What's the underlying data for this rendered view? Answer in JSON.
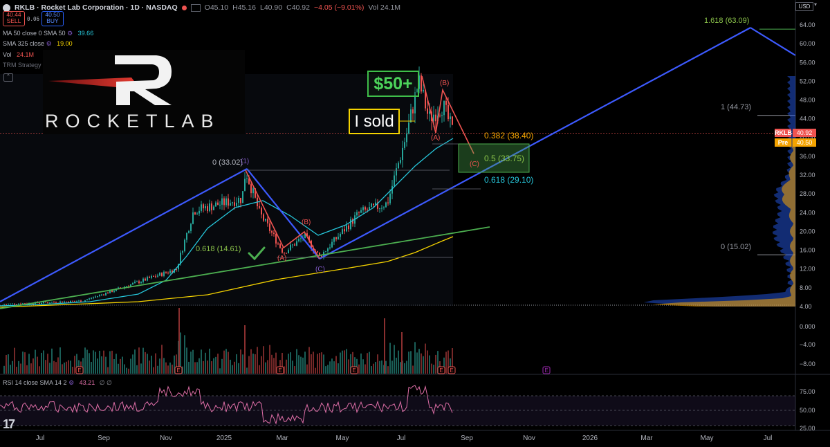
{
  "header": {
    "symbol_line": "RKLB · Rocket Lab Corporation · 1D · NASDAQ",
    "ohlc_open": "O45.10",
    "ohlc_high": "H45.16",
    "ohlc_low": "L40.90",
    "ohlc_close": "C40.92",
    "ohlc_change": "−4.05 (−9.01%)",
    "volume": "Vol 24.1M",
    "sell_price": "40.44",
    "sell_label": "SELL",
    "spread": "0.06",
    "buy_price": "40.50",
    "buy_label": "BUY"
  },
  "indicators": {
    "ma50_label": "MA 50 close 0 SMA 50",
    "ma50_value": "39.66",
    "sma325_label": "SMA 325 close",
    "sma325_value": "19.00",
    "vol_label": "Vol",
    "vol_value": "24.1M",
    "trm_label": "TRM Strategy 0 25 5 14 5 50 50 1 1 1,970",
    "rsi_label": "RSI 14 close SMA 14 2",
    "rsi_value": "43.21"
  },
  "currency": "USD",
  "logo": {
    "text": "ROCKETLAB",
    "mark": "R"
  },
  "annotations": {
    "sold": "I sold",
    "target": "$50+",
    "fib_0_top": "0 (33.02)",
    "fib_0618_low": "0.618 (14.61)",
    "fib_1618": "1.618 (63.09)",
    "fib_1": "1 (44.73)",
    "fib_0382": "0.382 (38.40)",
    "fib_05": "0.5 (33.75)",
    "fib_0618": "0.618 (29.10)",
    "fib_0": "0 (15.02)",
    "wave_A1": "(A)",
    "wave_B1": "(B)",
    "wave_C1": "(C)",
    "wave_A2": "(A)",
    "wave_B2": "(B)",
    "wave_C2": "(C)",
    "wave_1": "(1)"
  },
  "price_axis": [
    "64.00",
    "60.00",
    "56.00",
    "52.00",
    "48.00",
    "44.00",
    "40.00",
    "36.00",
    "32.00",
    "28.00",
    "24.00",
    "20.00",
    "16.00",
    "12.00",
    "8.00",
    "4.00"
  ],
  "price_tags": {
    "last_symbol": "RKLB",
    "last_price": "40.92",
    "pre_label": "Pre",
    "pre_price": "40.50"
  },
  "volume_axis": [
    "0.000",
    "−4.00",
    "−8.00"
  ],
  "rsi_axis": [
    "75.00",
    "50.00",
    "25.00"
  ],
  "time_axis": [
    "Jul",
    "Sep",
    "Nov",
    "2025",
    "Mar",
    "May",
    "Jul",
    "Sep",
    "Nov",
    "2026",
    "Mar",
    "May",
    "Jul"
  ],
  "event_markers": [
    "E",
    "E",
    "E",
    "E",
    "E",
    "E",
    "E"
  ],
  "colors": {
    "background": "#000000",
    "up": "#26a69a",
    "down": "#ef5350",
    "trend_blue": "#3d5afe",
    "fib_orange": "#f7a600",
    "fib_green": "#8bc34a",
    "rsi": "#e06fa8",
    "ma50": "#26c6da",
    "sma325": "#f5d300",
    "wave_red": "#ef5350"
  }
}
